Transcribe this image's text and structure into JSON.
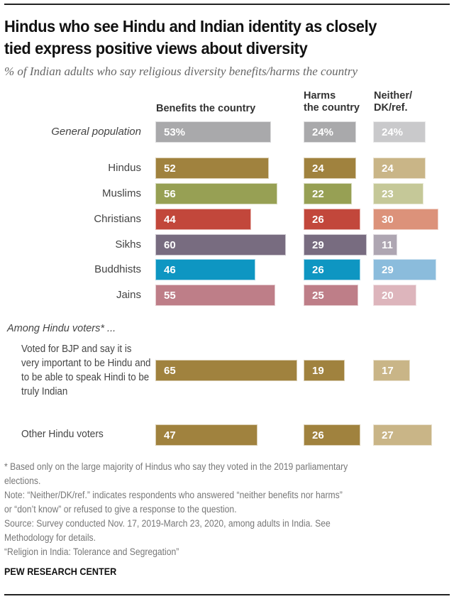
{
  "title_lines": [
    "Hindus who see Hindu and Indian identity as closely",
    "tied express positive views about diversity"
  ],
  "subtitle": "% of Indian adults who say religious diversity benefits/harms the country",
  "column_headers": {
    "benefits": "Benefits the country",
    "harms_line1": "Harms",
    "harms_line2": "the country",
    "neither_line1": "Neither/",
    "neither_line2": "DK/ref."
  },
  "section_label": "Among Hindu voters* ...",
  "chart_data": {
    "type": "bar",
    "orientation": "horizontal",
    "title": "Hindus who see Hindu and Indian identity as closely tied express positive views about diversity",
    "subtitle": "% of Indian adults who say religious diversity benefits/harms the country",
    "series_names": [
      "Benefits the country",
      "Harms the country",
      "Neither/DK/ref."
    ],
    "rows": [
      {
        "label": "General population",
        "italic": true,
        "values": [
          53,
          24,
          24
        ],
        "display": [
          "53%",
          "24%",
          "24%"
        ],
        "colors": [
          "#A9A9AB",
          "#A9A9AB",
          "#C9C9CB"
        ]
      },
      {
        "label": "Hindus",
        "values": [
          52,
          24,
          24
        ],
        "display": [
          "52",
          "24",
          "24"
        ],
        "colors": [
          "#A0823E",
          "#A0823E",
          "#C9B587"
        ]
      },
      {
        "label": "Muslims",
        "values": [
          56,
          22,
          23
        ],
        "display": [
          "56",
          "22",
          "23"
        ],
        "colors": [
          "#97A054",
          "#97A054",
          "#C5C898"
        ]
      },
      {
        "label": "Christians",
        "values": [
          44,
          26,
          30
        ],
        "display": [
          "44",
          "26",
          "30"
        ],
        "colors": [
          "#C2473B",
          "#C2473B",
          "#DC927A"
        ]
      },
      {
        "label": "Sikhs",
        "values": [
          60,
          29,
          11
        ],
        "display": [
          "60",
          "29",
          "11"
        ],
        "colors": [
          "#786C80",
          "#786C80",
          "#AEA6B2"
        ]
      },
      {
        "label": "Buddhists",
        "values": [
          46,
          26,
          29
        ],
        "display": [
          "46",
          "26",
          "29"
        ],
        "colors": [
          "#0E96C2",
          "#0E96C2",
          "#8BBCDC"
        ]
      },
      {
        "label": "Jains",
        "values": [
          55,
          25,
          20
        ],
        "display": [
          "55",
          "25",
          "20"
        ],
        "colors": [
          "#BE7E88",
          "#BE7E88",
          "#DDB5BC"
        ]
      },
      {
        "label": "Voted for BJP and say it is very important to be Hindu and to be able to speak Hindi to be truly Indian",
        "values": [
          65,
          19,
          17
        ],
        "display": [
          "65",
          "19",
          "17"
        ],
        "colors": [
          "#A0823E",
          "#A0823E",
          "#C9B587"
        ]
      },
      {
        "label": "Other Hindu voters",
        "values": [
          47,
          26,
          27
        ],
        "display": [
          "47",
          "26",
          "27"
        ],
        "colors": [
          "#A0823E",
          "#A0823E",
          "#C9B587"
        ]
      }
    ],
    "xlim": [
      0,
      100
    ],
    "grid": false,
    "legend": "column headers at top"
  },
  "notes": [
    "* Based only on the large majority of Hindus who say they voted in the 2019 parliamentary",
    "elections.",
    "Note: “Neither/DK/ref.” indicates respondents who answered “neither benefits nor harms”",
    "or “don’t know” or refused to give a response to the question.",
    "Source: Survey conducted Nov. 17, 2019-March 23, 2020, among adults in India. See",
    "Methodology for details.",
    "“Religion in India: Tolerance and Segregation”"
  ],
  "brand": "PEW RESEARCH CENTER"
}
